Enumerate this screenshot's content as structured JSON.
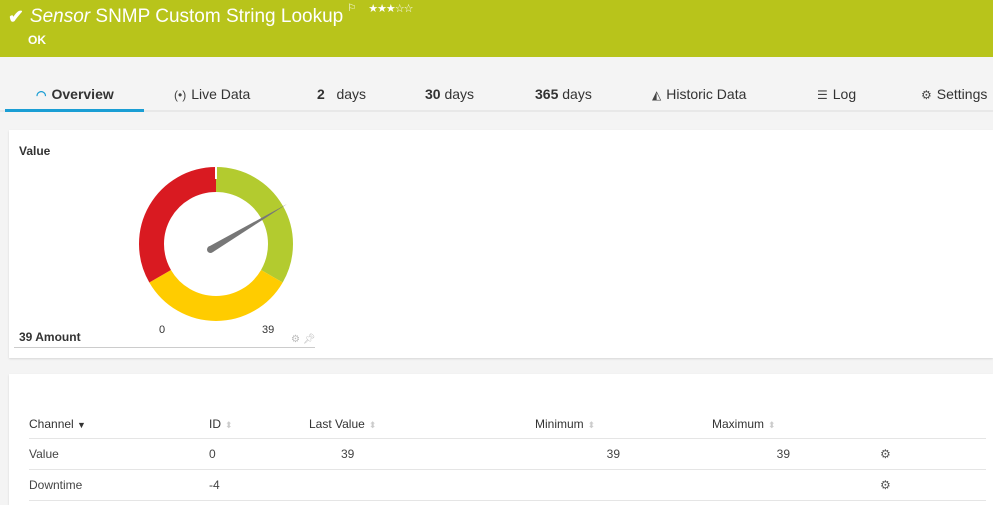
{
  "header": {
    "prefix": "Sensor",
    "title": "SNMP Custom String Lookup",
    "status": "OK",
    "stars": "★★★☆☆",
    "flag": "⚐",
    "check": "✔"
  },
  "colors": {
    "header": "#b8c41b",
    "accent": "#1a9ed4",
    "gauge_green": "#b3cb2f",
    "gauge_yellow": "#ffcc00",
    "gauge_red": "#d91a21",
    "needle": "#777777"
  },
  "tabs": [
    {
      "label": "Overview",
      "icon": "gauge-icon",
      "active": true
    },
    {
      "label": "Live Data",
      "icon": "broadcast-icon"
    },
    {
      "num": "2",
      "label": "days"
    },
    {
      "num": "30",
      "label": "days"
    },
    {
      "num": "365",
      "label": "days"
    },
    {
      "label": "Historic Data",
      "icon": "area-chart-icon"
    },
    {
      "label": "Log",
      "icon": "list-icon"
    },
    {
      "label": "Settings",
      "icon": "gear-icon"
    }
  ],
  "gauge": {
    "title": "Value",
    "amount": "39 Amount",
    "min": "0",
    "max": "39",
    "value": 39
  },
  "table": {
    "headers": [
      "Channel",
      "ID",
      "Last Value",
      "Minimum",
      "Maximum"
    ],
    "rows": [
      {
        "channel": "Value",
        "id": "0",
        "last": "39",
        "min": "39",
        "max": "39"
      },
      {
        "channel": "Downtime",
        "id": "-4",
        "last": "",
        "min": "",
        "max": ""
      }
    ]
  }
}
